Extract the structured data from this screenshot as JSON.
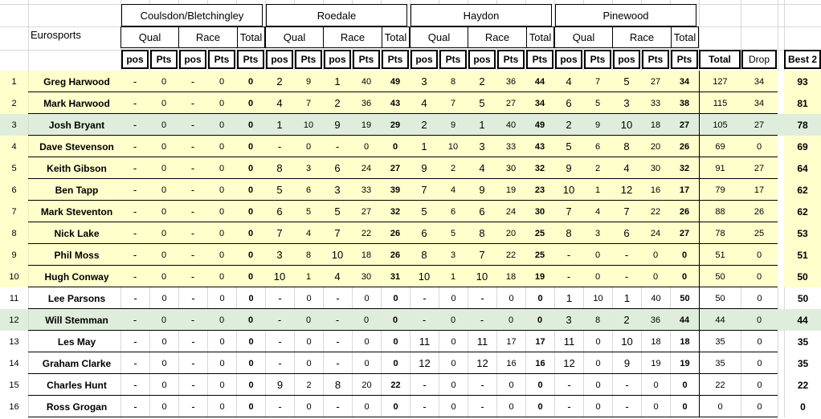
{
  "header": {
    "team": "Eurosports",
    "venues": [
      "Coulsdon/Bletchingley",
      "Roedale",
      "Haydon",
      "Pinewood"
    ],
    "qual": "Qual",
    "race": "Race",
    "total": "Total",
    "pos": "pos",
    "pts": "Pts",
    "summary": {
      "total": "Total",
      "drop": "Drop",
      "best2": "Best 2"
    }
  },
  "colors": {
    "row_yellow": "#FFFFCC",
    "row_green": "#DFEEDC",
    "grid": "#D8D8D8",
    "border": "#000000",
    "marker_green": "#2A7D2A"
  },
  "rows": [
    {
      "rank": "1",
      "name": "Greg Harwood",
      "bg": "yellow",
      "marker": false,
      "cells": [
        "-",
        "0",
        "-",
        "0",
        "0",
        "2",
        "9",
        "1",
        "40",
        "49",
        "3",
        "8",
        "2",
        "36",
        "44",
        "4",
        "7",
        "5",
        "27",
        "34"
      ],
      "total": "127",
      "drop": "34",
      "best2": "93"
    },
    {
      "rank": "2",
      "name": "Mark Harwood",
      "bg": "yellow",
      "marker": false,
      "cells": [
        "-",
        "0",
        "-",
        "0",
        "0",
        "4",
        "7",
        "2",
        "36",
        "43",
        "4",
        "7",
        "5",
        "27",
        "34",
        "6",
        "5",
        "3",
        "33",
        "38"
      ],
      "total": "115",
      "drop": "34",
      "best2": "81"
    },
    {
      "rank": "3",
      "name": "Josh Bryant",
      "bg": "green",
      "marker": false,
      "cells": [
        "-",
        "0",
        "-",
        "0",
        "0",
        "1",
        "10",
        "9",
        "19",
        "29",
        "2",
        "9",
        "1",
        "40",
        "49",
        "2",
        "9",
        "10",
        "18",
        "27"
      ],
      "total": "105",
      "drop": "27",
      "best2": "78"
    },
    {
      "rank": "4",
      "name": "Dave Stevenson",
      "bg": "yellow",
      "marker": true,
      "cells": [
        "-",
        "0",
        "-",
        "0",
        "0",
        "-",
        "0",
        "-",
        "0",
        "0",
        "1",
        "10",
        "3",
        "33",
        "43",
        "5",
        "6",
        "8",
        "20",
        "26"
      ],
      "total": "69",
      "drop": "0",
      "best2": "69"
    },
    {
      "rank": "5",
      "name": "Keith Gibson",
      "bg": "yellow",
      "marker": false,
      "cells": [
        "-",
        "0",
        "-",
        "0",
        "0",
        "8",
        "3",
        "6",
        "24",
        "27",
        "9",
        "2",
        "4",
        "30",
        "32",
        "9",
        "2",
        "4",
        "30",
        "32"
      ],
      "total": "91",
      "drop": "27",
      "best2": "64"
    },
    {
      "rank": "6",
      "name": "Ben Tapp",
      "bg": "yellow",
      "marker": false,
      "cells": [
        "-",
        "0",
        "-",
        "0",
        "0",
        "5",
        "6",
        "3",
        "33",
        "39",
        "7",
        "4",
        "9",
        "19",
        "23",
        "10",
        "1",
        "12",
        "16",
        "17"
      ],
      "total": "79",
      "drop": "17",
      "best2": "62"
    },
    {
      "rank": "7",
      "name": "Mark Steventon",
      "bg": "yellow",
      "marker": false,
      "cells": [
        "-",
        "0",
        "-",
        "0",
        "0",
        "6",
        "5",
        "5",
        "27",
        "32",
        "5",
        "6",
        "6",
        "24",
        "30",
        "7",
        "4",
        "7",
        "22",
        "26"
      ],
      "total": "88",
      "drop": "26",
      "best2": "62"
    },
    {
      "rank": "8",
      "name": "Nick Lake",
      "bg": "yellow",
      "marker": false,
      "cells": [
        "-",
        "0",
        "-",
        "0",
        "0",
        "7",
        "4",
        "7",
        "22",
        "26",
        "6",
        "5",
        "8",
        "20",
        "25",
        "8",
        "3",
        "6",
        "24",
        "27"
      ],
      "total": "78",
      "drop": "25",
      "best2": "53"
    },
    {
      "rank": "9",
      "name": "Phil Moss",
      "bg": "yellow",
      "marker": false,
      "cells": [
        "-",
        "0",
        "-",
        "0",
        "0",
        "3",
        "8",
        "10",
        "18",
        "26",
        "8",
        "3",
        "7",
        "22",
        "25",
        "-",
        "0",
        "-",
        "0",
        "0"
      ],
      "total": "51",
      "drop": "0",
      "best2": "51"
    },
    {
      "rank": "10",
      "name": "Hugh Conway",
      "bg": "yellow",
      "marker": false,
      "cells": [
        "-",
        "0",
        "-",
        "0",
        "0",
        "10",
        "1",
        "4",
        "30",
        "31",
        "10",
        "1",
        "10",
        "18",
        "19",
        "-",
        "0",
        "-",
        "0",
        "0"
      ],
      "total": "50",
      "drop": "0",
      "best2": "50"
    },
    {
      "rank": "11",
      "name": "Lee Parsons",
      "bg": "white",
      "marker": false,
      "cells": [
        "-",
        "0",
        "-",
        "0",
        "0",
        "-",
        "0",
        "-",
        "0",
        "0",
        "-",
        "0",
        "-",
        "0",
        "0",
        "1",
        "10",
        "1",
        "40",
        "50"
      ],
      "total": "50",
      "drop": "0",
      "best2": "50"
    },
    {
      "rank": "12",
      "name": "Will Stemman",
      "bg": "green",
      "marker": false,
      "cells": [
        "-",
        "0",
        "-",
        "0",
        "0",
        "-",
        "0",
        "-",
        "0",
        "0",
        "-",
        "0",
        "-",
        "0",
        "0",
        "3",
        "8",
        "2",
        "36",
        "44"
      ],
      "total": "44",
      "drop": "0",
      "best2": "44"
    },
    {
      "rank": "13",
      "name": "Les May",
      "bg": "white",
      "marker": false,
      "cells": [
        "-",
        "0",
        "-",
        "0",
        "0",
        "-",
        "0",
        "-",
        "0",
        "0",
        "11",
        "0",
        "11",
        "17",
        "17",
        "11",
        "0",
        "10",
        "18",
        "18"
      ],
      "total": "35",
      "drop": "0",
      "best2": "35"
    },
    {
      "rank": "14",
      "name": "Graham Clarke",
      "bg": "white",
      "marker": false,
      "cells": [
        "-",
        "0",
        "-",
        "0",
        "0",
        "-",
        "0",
        "-",
        "0",
        "0",
        "12",
        "0",
        "12",
        "16",
        "16",
        "12",
        "0",
        "9",
        "19",
        "19"
      ],
      "total": "35",
      "drop": "0",
      "best2": "35"
    },
    {
      "rank": "15",
      "name": "Charles Hunt",
      "bg": "white",
      "marker": false,
      "cells": [
        "-",
        "0",
        "-",
        "0",
        "0",
        "9",
        "2",
        "8",
        "20",
        "22",
        "-",
        "0",
        "-",
        "0",
        "0",
        "-",
        "0",
        "-",
        "0",
        "0"
      ],
      "total": "22",
      "drop": "0",
      "best2": "22"
    },
    {
      "rank": "16",
      "name": "Ross Grogan",
      "bg": "white",
      "marker": false,
      "cells": [
        "-",
        "0",
        "-",
        "0",
        "0",
        "-",
        "0",
        "-",
        "0",
        "0",
        "-",
        "0",
        "-",
        "0",
        "0",
        "-",
        "0",
        "-",
        "0",
        "0"
      ],
      "total": "0",
      "drop": "0",
      "best2": "0"
    }
  ]
}
